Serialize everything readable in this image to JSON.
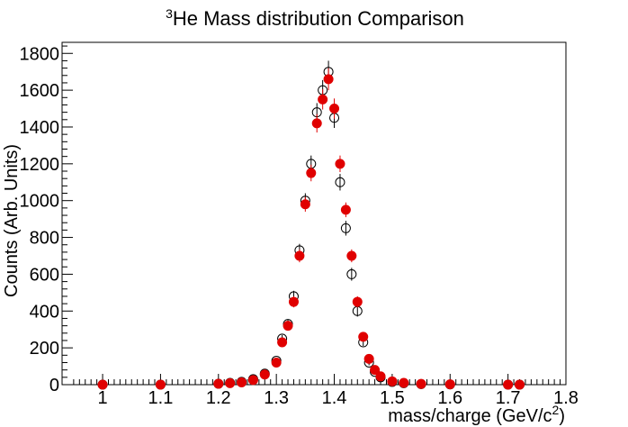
{
  "chart_data": {
    "type": "scatter",
    "title_sup": "3",
    "title_main": "He Mass distribution Comparison",
    "xlabel_main": "mass/charge (GeV/c",
    "xlabel_sup": "2",
    "xlabel_close": ")",
    "ylabel": "Counts (Arb. Units)",
    "xlim": [
      0.93,
      1.8
    ],
    "ylim": [
      0,
      1860
    ],
    "x_ticks": [
      "1",
      "1.1",
      "1.2",
      "1.3",
      "1.4",
      "1.5",
      "1.6",
      "1.7",
      "1.8"
    ],
    "y_ticks": [
      "0",
      "200",
      "400",
      "600",
      "800",
      "1000",
      "1200",
      "1400",
      "1600",
      "1800"
    ],
    "colors": {
      "series_open": "#000000",
      "series_filled": "#e00000"
    },
    "series": [
      {
        "marker": "open-circle",
        "x": [
          1.0,
          1.1,
          1.2,
          1.22,
          1.24,
          1.26,
          1.28,
          1.3,
          1.31,
          1.32,
          1.33,
          1.34,
          1.35,
          1.36,
          1.37,
          1.38,
          1.39,
          1.4,
          1.41,
          1.42,
          1.43,
          1.44,
          1.45,
          1.46,
          1.47,
          1.48,
          1.5,
          1.52,
          1.55,
          1.6,
          1.7,
          1.72
        ],
        "y": [
          0,
          0,
          5,
          10,
          15,
          30,
          60,
          130,
          250,
          330,
          480,
          730,
          1000,
          1200,
          1480,
          1600,
          1700,
          1450,
          1100,
          850,
          600,
          400,
          230,
          120,
          70,
          40,
          15,
          8,
          3,
          1,
          0,
          0
        ],
        "err": [
          3,
          3,
          4,
          5,
          6,
          8,
          10,
          15,
          20,
          25,
          30,
          35,
          40,
          45,
          50,
          55,
          60,
          55,
          45,
          40,
          35,
          30,
          20,
          15,
          10,
          8,
          5,
          4,
          3,
          2,
          2,
          2
        ]
      },
      {
        "marker": "filled-circle",
        "x": [
          1.0,
          1.1,
          1.2,
          1.22,
          1.24,
          1.26,
          1.28,
          1.3,
          1.31,
          1.32,
          1.33,
          1.34,
          1.35,
          1.36,
          1.37,
          1.38,
          1.39,
          1.4,
          1.41,
          1.42,
          1.43,
          1.44,
          1.45,
          1.46,
          1.47,
          1.48,
          1.5,
          1.52,
          1.55,
          1.6,
          1.7,
          1.72
        ],
        "y": [
          0,
          0,
          5,
          8,
          12,
          25,
          55,
          120,
          230,
          320,
          450,
          700,
          980,
          1150,
          1420,
          1550,
          1660,
          1500,
          1200,
          950,
          700,
          450,
          260,
          140,
          80,
          45,
          18,
          10,
          4,
          2,
          0,
          0
        ],
        "err": [
          3,
          3,
          4,
          5,
          6,
          8,
          10,
          15,
          20,
          25,
          30,
          35,
          40,
          45,
          50,
          55,
          60,
          55,
          45,
          40,
          35,
          30,
          20,
          15,
          10,
          8,
          5,
          4,
          3,
          2,
          2,
          2
        ]
      }
    ]
  }
}
